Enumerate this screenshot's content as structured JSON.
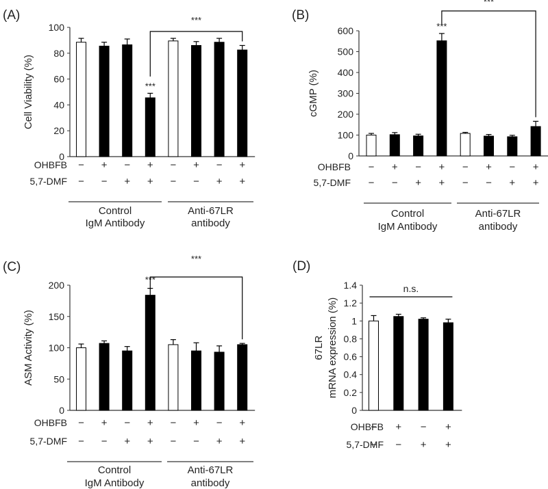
{
  "chart_data": [
    {
      "type": "bar",
      "panel": "(A)",
      "ylabel": "Cell Viability (%)",
      "ylim": [
        0,
        100
      ],
      "yticks": [
        0,
        20,
        40,
        60,
        80,
        100
      ],
      "values": [
        88.5,
        85.5,
        86.5,
        45.5,
        89.5,
        86,
        88.5,
        82.5
      ],
      "errors": [
        3,
        3,
        4.5,
        3.5,
        2,
        3,
        3,
        3.5
      ],
      "fills": [
        "white",
        "black",
        "black",
        "black",
        "white",
        "black",
        "black",
        "black"
      ],
      "rows": [
        {
          "label": "OHBFB",
          "signs": [
            "−",
            "+",
            "−",
            "+",
            "−",
            "+",
            "−",
            "+"
          ]
        },
        {
          "label": "5,7-DMF",
          "signs": [
            "−",
            "−",
            "+",
            "+",
            "−",
            "−",
            "+",
            "+"
          ]
        }
      ],
      "groups": [
        {
          "lines": [
            "Control",
            "IgM Antibody"
          ]
        },
        {
          "lines": [
            "Anti-67LR",
            "antibody"
          ]
        }
      ],
      "bar_labels": [
        {
          "bar": 3,
          "text": "***"
        }
      ],
      "bracket": {
        "from": 3,
        "to": 7,
        "text": "***"
      }
    },
    {
      "type": "bar",
      "panel": "(B)",
      "ylabel": "cGMP (%)",
      "ylim": [
        0,
        600
      ],
      "yticks": [
        0,
        100,
        200,
        300,
        400,
        500,
        600
      ],
      "values": [
        100,
        102,
        96,
        552,
        108,
        95,
        92,
        141
      ],
      "errors": [
        8,
        10,
        8,
        35,
        5,
        8,
        7,
        25
      ],
      "fills": [
        "white",
        "black",
        "black",
        "black",
        "white",
        "black",
        "black",
        "black"
      ],
      "rows": [
        {
          "label": "OHBFB",
          "signs": [
            "−",
            "+",
            "−",
            "+",
            "−",
            "+",
            "−",
            "+"
          ]
        },
        {
          "label": "5,7-DMF",
          "signs": [
            "−",
            "−",
            "+",
            "+",
            "−",
            "−",
            "+",
            "+"
          ]
        }
      ],
      "groups": [
        {
          "lines": [
            "Control",
            "IgM Antibody"
          ]
        },
        {
          "lines": [
            "Anti-67LR",
            "antibody"
          ]
        }
      ],
      "bar_labels": [
        {
          "bar": 3,
          "text": "***"
        }
      ],
      "bracket": {
        "from": 3,
        "to": 7,
        "text": "***"
      }
    },
    {
      "type": "bar",
      "panel": "(C)",
      "ylabel": "ASM Activity (%)",
      "ylim": [
        0,
        200
      ],
      "yticks": [
        0,
        50,
        100,
        150,
        200
      ],
      "values": [
        100,
        107,
        95,
        184,
        105,
        95,
        93,
        105
      ],
      "errors": [
        6,
        4,
        7,
        11,
        8,
        13,
        10,
        2
      ],
      "fills": [
        "white",
        "black",
        "black",
        "black",
        "white",
        "black",
        "black",
        "black"
      ],
      "rows": [
        {
          "label": "OHBFB",
          "signs": [
            "−",
            "+",
            "−",
            "+",
            "−",
            "+",
            "−",
            "+"
          ]
        },
        {
          "label": "5,7-DMF",
          "signs": [
            "−",
            "−",
            "+",
            "+",
            "−",
            "−",
            "+",
            "+"
          ]
        }
      ],
      "groups": [
        {
          "lines": [
            "Control",
            "IgM Antibody"
          ]
        },
        {
          "lines": [
            "Anti-67LR",
            "antibody"
          ]
        }
      ],
      "bar_labels": [
        {
          "bar": 3,
          "text": "***"
        }
      ],
      "bracket": {
        "from": 3,
        "to": 7,
        "text": "***"
      }
    },
    {
      "type": "bar",
      "panel": "(D)",
      "ylabel": [
        "67LR",
        "mRNA expression (%)"
      ],
      "ylim": [
        0,
        1.4
      ],
      "yticks": [
        "0",
        "0.2",
        "0.4",
        "0.6",
        "0.8",
        "1",
        "1.2",
        "1.4"
      ],
      "values": [
        1.0,
        1.05,
        1.02,
        0.98
      ],
      "errors": [
        0.06,
        0.025,
        0.015,
        0.04
      ],
      "fills": [
        "white",
        "black",
        "black",
        "black"
      ],
      "rows": [
        {
          "label": "OHBFB",
          "signs": [
            "−",
            "+",
            "−",
            "+"
          ]
        },
        {
          "label": "5,7-DMF",
          "signs": [
            "−",
            "−",
            "+",
            "+"
          ]
        }
      ],
      "groups": [],
      "bar_labels": [],
      "ns_line": {
        "from": 0,
        "to": 3,
        "text": "n.s."
      }
    }
  ]
}
